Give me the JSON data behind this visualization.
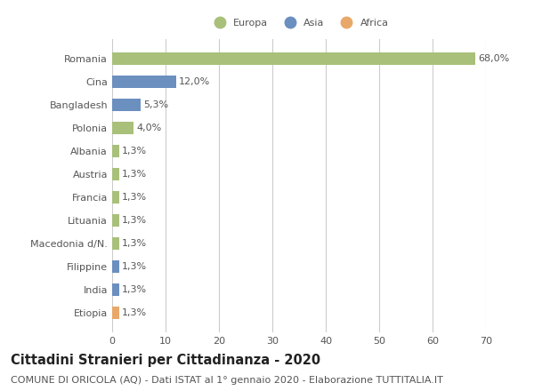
{
  "countries": [
    "Romania",
    "Cina",
    "Bangladesh",
    "Polonia",
    "Albania",
    "Austria",
    "Francia",
    "Lituania",
    "Macedonia d/N.",
    "Filippine",
    "India",
    "Etiopia"
  ],
  "values": [
    68.0,
    12.0,
    5.3,
    4.0,
    1.3,
    1.3,
    1.3,
    1.3,
    1.3,
    1.3,
    1.3,
    1.3
  ],
  "labels": [
    "68,0%",
    "12,0%",
    "5,3%",
    "4,0%",
    "1,3%",
    "1,3%",
    "1,3%",
    "1,3%",
    "1,3%",
    "1,3%",
    "1,3%",
    "1,3%"
  ],
  "colors": [
    "#a8c07a",
    "#6b8fbf",
    "#6b8fbf",
    "#a8c07a",
    "#a8c07a",
    "#a8c07a",
    "#a8c07a",
    "#a8c07a",
    "#a8c07a",
    "#6b8fbf",
    "#6b8fbf",
    "#e8a86a"
  ],
  "legend_labels": [
    "Europa",
    "Asia",
    "Africa"
  ],
  "legend_colors": [
    "#a8c07a",
    "#6b8fbf",
    "#e8a86a"
  ],
  "xlim": [
    0,
    70
  ],
  "xticks": [
    0,
    10,
    20,
    30,
    40,
    50,
    60,
    70
  ],
  "title": "Cittadini Stranieri per Cittadinanza - 2020",
  "subtitle": "COMUNE DI ORICOLA (AQ) - Dati ISTAT al 1° gennaio 2020 - Elaborazione TUTTITALIA.IT",
  "background_color": "#ffffff",
  "grid_color": "#cccccc",
  "bar_height": 0.55,
  "title_fontsize": 10.5,
  "subtitle_fontsize": 8,
  "label_fontsize": 8,
  "tick_fontsize": 8
}
